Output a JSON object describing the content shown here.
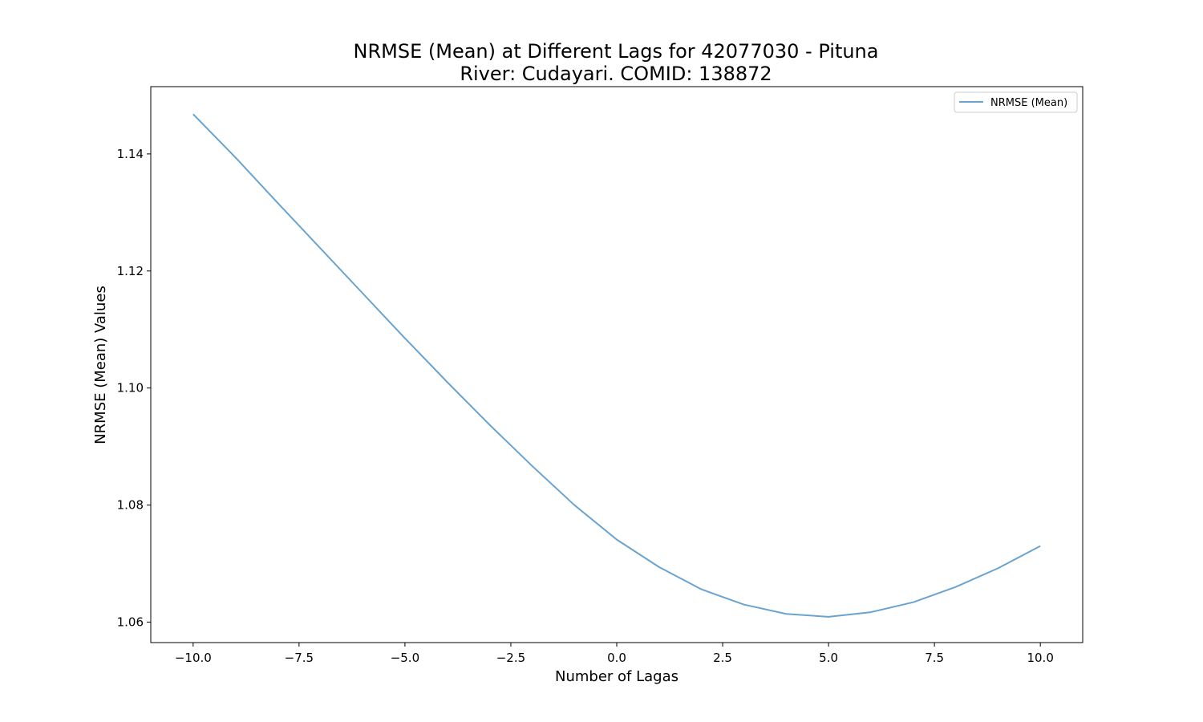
{
  "chart_data": {
    "type": "line",
    "title_line1": "NRMSE (Mean) at Different Lags for 42077030 - Pituna",
    "title_line2": "River: Cudayari. COMID: 138872",
    "xlabel": "Number of Lagas",
    "ylabel": "NRMSE (Mean) Values",
    "xlim": [
      -11,
      11
    ],
    "ylim": [
      1.0565,
      1.1515
    ],
    "x_ticks": [
      -10.0,
      -7.5,
      -5.0,
      -2.5,
      0.0,
      2.5,
      5.0,
      7.5,
      10.0
    ],
    "x_tick_labels": [
      "−10.0",
      "−7.5",
      "−5.0",
      "−2.5",
      "0.0",
      "2.5",
      "5.0",
      "7.5",
      "10.0"
    ],
    "y_ticks": [
      1.06,
      1.08,
      1.1,
      1.12,
      1.14
    ],
    "y_tick_labels": [
      "1.06",
      "1.08",
      "1.10",
      "1.12",
      "1.14"
    ],
    "grid": false,
    "legend_position": "top-right",
    "series": [
      {
        "name": "NRMSE (Mean)",
        "color": "#6aa3d0",
        "x": [
          -10,
          -9,
          -8,
          -7,
          -6,
          -5,
          -4,
          -3,
          -2,
          -1,
          0,
          1,
          2,
          3,
          4,
          5,
          6,
          7,
          8,
          9,
          10
        ],
        "y": [
          1.1468,
          1.1394,
          1.1316,
          1.1239,
          1.1162,
          1.1085,
          1.101,
          1.0937,
          1.0867,
          1.08,
          1.0741,
          1.0694,
          1.0656,
          1.063,
          1.0614,
          1.0609,
          1.0617,
          1.0634,
          1.066,
          1.0692,
          1.073
        ]
      }
    ]
  }
}
